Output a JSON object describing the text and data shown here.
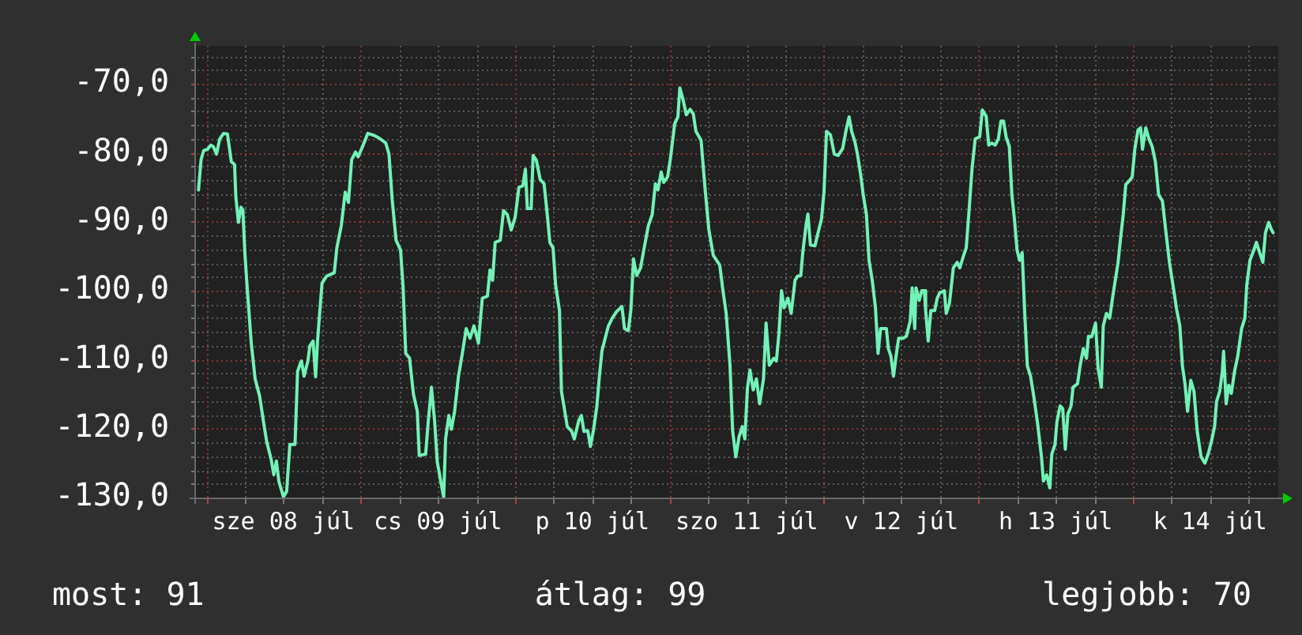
{
  "chart_data": {
    "type": "line",
    "color": "#72f2b6",
    "x": [
      "--07-07T22:48",
      "--07-07T23:12",
      "--07-07T23:36",
      "--07-08T00:12",
      "--07-08T00:42",
      "--07-08T01:06",
      "--07-08T01:36",
      "--07-08T02:06",
      "--07-08T02:42",
      "--07-08T03:18",
      "--07-08T03:54",
      "--07-08T04:24",
      "--07-08T04:36",
      "--07-08T05:00",
      "--07-08T05:24",
      "--07-08T05:42",
      "--07-08T06:00",
      "--07-08T06:24",
      "--07-08T07:00",
      "--07-08T07:36",
      "--07-08T08:18",
      "--07-08T08:54",
      "--07-08T09:24",
      "--07-08T10:06",
      "--07-08T10:30",
      "--07-08T10:54",
      "--07-08T11:18",
      "--07-08T12:00",
      "--07-08T12:30",
      "--07-08T13:00",
      "--07-08T13:48",
      "--07-08T14:12",
      "--07-08T14:36",
      "--07-08T14:48",
      "--07-08T15:12",
      "--07-08T15:48",
      "--07-08T16:06",
      "--07-08T16:36",
      "--07-08T17:00",
      "--07-08T17:18",
      "--07-08T17:36",
      "--07-08T18:00",
      "--07-08T18:42",
      "--07-08T19:54",
      "--07-08T20:18",
      "--07-08T21:00",
      "--07-08T21:36",
      "--07-08T22:06",
      "--07-08T22:36",
      "--07-08T23:12",
      "--07-08T23:36",
      "--07-09T00:18",
      "--07-09T01:06",
      "--07-09T02:06",
      "--07-09T02:54",
      "--07-09T03:54",
      "--07-09T04:24",
      "--07-09T04:54",
      "--07-09T05:30",
      "--07-09T06:12",
      "--07-09T06:36",
      "--07-09T07:00",
      "--07-09T07:36",
      "--07-09T08:12",
      "--07-09T08:48",
      "--07-09T09:06",
      "--07-09T10:06",
      "--07-09T10:30",
      "--07-09T11:00",
      "--07-09T11:30",
      "--07-09T11:54",
      "--07-09T12:24",
      "--07-09T12:54",
      "--07-09T13:12",
      "--07-09T13:42",
      "--07-09T14:06",
      "--07-09T14:36",
      "--07-09T15:12",
      "--07-09T15:48",
      "--07-09T16:24",
      "--07-09T17:00",
      "--07-09T17:36",
      "--07-09T18:18",
      "--07-09T18:54",
      "--07-09T19:42",
      "--07-09T20:06",
      "--07-09T20:30",
      "--07-09T20:54",
      "--07-09T21:42",
      "--07-09T22:12",
      "--07-09T22:48",
      "--07-09T23:24",
      "--07-10T00:00",
      "--07-10T00:36",
      "--07-10T01:12",
      "--07-10T01:36",
      "--07-10T01:54",
      "--07-10T02:30",
      "--07-10T02:48",
      "--07-10T03:18",
      "--07-10T03:54",
      "--07-10T04:30",
      "--07-10T05:00",
      "--07-10T05:24",
      "--07-10T05:54",
      "--07-10T06:18",
      "--07-10T06:54",
      "--07-10T07:12",
      "--07-10T07:36",
      "--07-10T08:06",
      "--07-10T08:48",
      "--07-10T09:12",
      "--07-10T09:54",
      "--07-10T10:18",
      "--07-10T10:42",
      "--07-10T11:18",
      "--07-10T11:42",
      "--07-10T12:12",
      "--07-10T12:42",
      "--07-10T13:06",
      "--07-10T13:30",
      "--07-10T14:00",
      "--07-10T14:30",
      "--07-10T15:06",
      "--07-10T15:48",
      "--07-10T16:36",
      "--07-10T17:00",
      "--07-10T17:36",
      "--07-10T18:00",
      "--07-10T18:24",
      "--07-10T18:54",
      "--07-10T19:30",
      "--07-10T20:00",
      "--07-10T20:42",
      "--07-10T21:18",
      "--07-10T21:48",
      "--07-10T22:12",
      "--07-10T22:42",
      "--07-10T23:06",
      "--07-10T23:42",
      "--07-11T00:06",
      "--07-11T00:48",
      "--07-11T01:18",
      "--07-11T01:36",
      "--07-11T02:06",
      "--07-11T02:36",
      "--07-11T03:12",
      "--07-11T03:42",
      "--07-11T04:06",
      "--07-11T04:54",
      "--07-11T05:30",
      "--07-11T06:06",
      "--07-11T06:48",
      "--07-11T07:48",
      "--07-11T08:18",
      "--07-11T08:48",
      "--07-11T09:24",
      "--07-11T09:48",
      "--07-11T10:18",
      "--07-11T10:48",
      "--07-11T11:18",
      "--07-11T11:42",
      "--07-11T12:06",
      "--07-11T12:30",
      "--07-11T13:00",
      "--07-11T13:30",
      "--07-11T14:00",
      "--07-11T14:36",
      "--07-11T15:00",
      "--07-11T15:30",
      "--07-11T16:12",
      "--07-11T16:36",
      "--07-11T17:00",
      "--07-11T17:24",
      "--07-11T17:48",
      "--07-11T18:24",
      "--07-11T18:54",
      "--07-11T19:30",
      "--07-11T19:54",
      "--07-11T20:24",
      "--07-11T20:42",
      "--07-11T21:12",
      "--07-11T21:30",
      "--07-11T21:54",
      "--07-11T22:36",
      "--07-11T23:00",
      "--07-11T23:36",
      "--07-12T00:00",
      "--07-12T00:24",
      "--07-12T01:00",
      "--07-12T01:36",
      "--07-12T02:12",
      "--07-12T02:54",
      "--07-12T03:24",
      "--07-12T03:54",
      "--07-12T04:18",
      "--07-12T04:48",
      "--07-12T05:12",
      "--07-12T05:42",
      "--07-12T06:06",
      "--07-12T06:36",
      "--07-12T07:00",
      "--07-12T07:30",
      "--07-12T08:00",
      "--07-12T08:24",
      "--07-12T08:48",
      "--07-12T09:42",
      "--07-12T10:00",
      "--07-12T10:24",
      "--07-12T10:48",
      "--07-12T11:12",
      "--07-12T11:36",
      "--07-12T12:18",
      "--07-12T12:48",
      "--07-12T13:24",
      "--07-12T13:42",
      "--07-12T14:06",
      "--07-12T14:18",
      "--07-12T14:48",
      "--07-12T15:12",
      "--07-12T15:36",
      "--07-12T15:48",
      "--07-12T16:12",
      "--07-12T16:36",
      "--07-12T17:12",
      "--07-12T17:36",
      "--07-12T18:00",
      "--07-12T18:42",
      "--07-12T19:00",
      "--07-12T19:30",
      "--07-12T20:06",
      "--07-12T20:42",
      "--07-12T21:06",
      "--07-12T21:42",
      "--07-12T22:06",
      "--07-12T22:30",
      "--07-12T23:00",
      "--07-12T23:30",
      "--07-13T00:12",
      "--07-13T00:36",
      "--07-13T01:12",
      "--07-13T01:36",
      "--07-13T02:06",
      "--07-13T02:36",
      "--07-13T03:06",
      "--07-13T03:30",
      "--07-13T03:54",
      "--07-13T04:18",
      "--07-13T04:48",
      "--07-13T05:12",
      "--07-13T05:36",
      "--07-13T06:00",
      "--07-13T06:24",
      "--07-13T06:48",
      "--07-13T07:12",
      "--07-13T07:36",
      "--07-13T08:06",
      "--07-13T08:36",
      "--07-13T09:12",
      "--07-13T09:48",
      "--07-13T10:06",
      "--07-13T10:36",
      "--07-13T11:06",
      "--07-13T11:24",
      "--07-13T11:54",
      "--07-13T12:12",
      "--07-13T12:42",
      "--07-13T13:06",
      "--07-13T13:30",
      "--07-13T13:54",
      "--07-13T14:24",
      "--07-13T14:42",
      "--07-13T15:24",
      "--07-13T15:48",
      "--07-13T16:18",
      "--07-13T16:48",
      "--07-13T17:06",
      "--07-13T17:36",
      "--07-13T18:12",
      "--07-13T18:36",
      "--07-13T19:06",
      "--07-13T19:24",
      "--07-13T19:54",
      "--07-13T20:24",
      "--07-13T20:54",
      "--07-13T21:12",
      "--07-13T21:42",
      "--07-13T22:06",
      "--07-13T22:30",
      "--07-13T22:54",
      "--07-13T23:30",
      "--07-13T23:54",
      "--07-14T00:18",
      "--07-14T00:48",
      "--07-14T01:12",
      "--07-14T01:30",
      "--07-14T02:00",
      "--07-14T02:30",
      "--07-14T03:00",
      "--07-14T03:30",
      "--07-14T04:00",
      "--07-14T04:36",
      "--07-14T05:06",
      "--07-14T05:42",
      "--07-14T06:18",
      "--07-14T06:48",
      "--07-14T07:18",
      "--07-14T07:42",
      "--07-14T08:06",
      "--07-14T08:30",
      "--07-14T09:00",
      "--07-14T09:30",
      "--07-14T10:00",
      "--07-14T10:36",
      "--07-14T11:12",
      "--07-14T11:42",
      "--07-14T12:12",
      "--07-14T12:42",
      "--07-14T13:00",
      "--07-14T13:30",
      "--07-14T13:54",
      "--07-14T14:06",
      "--07-14T14:30",
      "--07-14T14:54",
      "--07-14T15:18",
      "--07-14T15:48",
      "--07-14T16:18",
      "--07-14T16:54",
      "--07-14T17:24",
      "--07-14T17:42",
      "--07-14T18:12",
      "--07-14T18:48",
      "--07-14T19:12",
      "--07-14T19:42",
      "--07-14T20:12",
      "--07-14T20:36",
      "--07-14T21:06",
      "--07-14T21:30",
      "--07-14T21:48"
    ],
    "values": [
      -85.4,
      -81.0,
      -79.7,
      -79.5,
      -78.9,
      -79.1,
      -80.2,
      -78.0,
      -77.2,
      -77.3,
      -81.3,
      -81.7,
      -86.4,
      -90.1,
      -87.9,
      -88.3,
      -94.5,
      -100.0,
      -107.6,
      -112.8,
      -115.3,
      -119.0,
      -121.9,
      -124.5,
      -126.7,
      -124.7,
      -127.7,
      -129.9,
      -129.1,
      -122.3,
      -122.3,
      -111.7,
      -110.6,
      -110.2,
      -112.4,
      -110.2,
      -108.0,
      -107.3,
      -112.5,
      -107.3,
      -103.6,
      -98.9,
      -97.9,
      -97.4,
      -93.8,
      -90.5,
      -85.7,
      -87.2,
      -81.0,
      -79.9,
      -80.6,
      -79.1,
      -77.2,
      -77.5,
      -77.9,
      -78.6,
      -80.2,
      -86.8,
      -92.7,
      -94.1,
      -99.6,
      -109.1,
      -109.8,
      -115.0,
      -117.5,
      -123.9,
      -123.7,
      -119.0,
      -114.0,
      -119.0,
      -124.8,
      -127.4,
      -130.0,
      -121.5,
      -118.1,
      -120.1,
      -117.5,
      -112.4,
      -109.1,
      -105.5,
      -106.9,
      -105.1,
      -107.6,
      -101.1,
      -100.8,
      -97.0,
      -98.5,
      -93.0,
      -92.7,
      -88.4,
      -89.0,
      -91.2,
      -89.4,
      -85.0,
      -84.8,
      -82.4,
      -88.1,
      -88.1,
      -80.4,
      -81.1,
      -83.9,
      -84.5,
      -89.0,
      -93.0,
      -93.8,
      -99.2,
      -102.9,
      -114.6,
      -116.8,
      -119.7,
      -120.4,
      -121.5,
      -118.8,
      -118.1,
      -120.4,
      -120.3,
      -122.6,
      -120.1,
      -116.8,
      -112.4,
      -108.7,
      -106.9,
      -105.1,
      -104.0,
      -103.0,
      -102.3,
      -105.5,
      -105.8,
      -102.7,
      -95.4,
      -97.8,
      -96.7,
      -94.1,
      -90.6,
      -89.0,
      -84.5,
      -85.4,
      -82.8,
      -84.3,
      -83.5,
      -81.1,
      -75.8,
      -74.8,
      -70.6,
      -72.3,
      -74.5,
      -73.7,
      -74.4,
      -76.9,
      -78.2,
      -85.0,
      -91.1,
      -94.9,
      -96.3,
      -100.0,
      -103.3,
      -110.9,
      -120.3,
      -124.1,
      -121.2,
      -119.7,
      -121.5,
      -114.2,
      -111.5,
      -114.4,
      -112.8,
      -116.4,
      -112.8,
      -104.7,
      -110.8,
      -109.8,
      -110.2,
      -106.2,
      -100.0,
      -102.5,
      -101.1,
      -103.3,
      -98.5,
      -97.9,
      -97.8,
      -94.5,
      -90.6,
      -88.9,
      -93.4,
      -93.5,
      -91.9,
      -89.7,
      -85.7,
      -76.9,
      -77.4,
      -80.2,
      -80.4,
      -79.4,
      -76.9,
      -74.8,
      -76.9,
      -78.4,
      -80.2,
      -83.2,
      -86.1,
      -89.0,
      -95.6,
      -98.5,
      -102.5,
      -109.1,
      -105.5,
      -105.5,
      -108.4,
      -109.5,
      -112.4,
      -109.5,
      -106.9,
      -106.9,
      -106.6,
      -104.4,
      -99.6,
      -105.5,
      -99.6,
      -101.4,
      -100.0,
      -100.0,
      -102.9,
      -107.3,
      -102.9,
      -102.9,
      -101.1,
      -100.3,
      -100.0,
      -103.3,
      -101.8,
      -96.7,
      -95.9,
      -96.7,
      -94.9,
      -93.8,
      -89.0,
      -82.4,
      -78.0,
      -77.7,
      -73.8,
      -74.7,
      -78.9,
      -78.6,
      -78.9,
      -78.0,
      -75.4,
      -75.4,
      -77.7,
      -79.1,
      -86.1,
      -89.7,
      -94.1,
      -95.6,
      -94.5,
      -103.3,
      -110.9,
      -112.4,
      -115.3,
      -119.3,
      -124.1,
      -127.6,
      -126.7,
      -128.6,
      -123.7,
      -122.3,
      -119.0,
      -116.7,
      -117.1,
      -123.0,
      -117.9,
      -116.7,
      -114.0,
      -113.5,
      -110.9,
      -108.4,
      -109.8,
      -106.6,
      -106.7,
      -104.7,
      -111.3,
      -114.0,
      -105.1,
      -103.3,
      -104.0,
      -100.7,
      -98.9,
      -95.9,
      -92.3,
      -89.0,
      -84.6,
      -84.0,
      -83.5,
      -79.5,
      -76.7,
      -76.4,
      -79.5,
      -76.4,
      -78.0,
      -79.1,
      -81.3,
      -86.1,
      -87.0,
      -91.2,
      -96.0,
      -99.6,
      -102.7,
      -105.1,
      -110.9,
      -113.5,
      -117.5,
      -113.0,
      -114.6,
      -120.4,
      -124.1,
      -125.0,
      -123.7,
      -121.9,
      -119.7,
      -116.1,
      -114.6,
      -111.7,
      -108.8,
      -116.4,
      -113.7,
      -114.9,
      -111.7,
      -109.5,
      -105.5,
      -104.0,
      -99.2,
      -95.6,
      -94.1,
      -93.0,
      -94.5,
      -95.9,
      -91.6,
      -90.1,
      -91.1,
      -91.6
    ],
    "xlim": [
      "--07-07T22:24",
      "--07-14T22:36"
    ],
    "ylim": [
      -130,
      -64.5
    ],
    "xticks": [
      {
        "value": "--07-08T00:00",
        "label": null
      },
      {
        "value": "--07-08T06:00",
        "label": null
      },
      {
        "value": "--07-08T12:00",
        "label": "sze 08 júl"
      },
      {
        "value": "--07-08T18:00",
        "label": null
      },
      {
        "value": "--07-09T00:00",
        "label": null
      },
      {
        "value": "--07-09T06:00",
        "label": null
      },
      {
        "value": "--07-09T12:00",
        "label": "cs 09 júl"
      },
      {
        "value": "--07-09T18:00",
        "label": null
      },
      {
        "value": "--07-10T00:00",
        "label": null
      },
      {
        "value": "--07-10T06:00",
        "label": null
      },
      {
        "value": "--07-10T12:00",
        "label": "p 10 júl"
      },
      {
        "value": "--07-10T18:00",
        "label": null
      },
      {
        "value": "--07-11T00:00",
        "label": null
      },
      {
        "value": "--07-11T06:00",
        "label": null
      },
      {
        "value": "--07-11T12:00",
        "label": "szo 11 júl"
      },
      {
        "value": "--07-11T18:00",
        "label": null
      },
      {
        "value": "--07-12T00:00",
        "label": null
      },
      {
        "value": "--07-12T06:00",
        "label": null
      },
      {
        "value": "--07-12T12:00",
        "label": "v 12 júl"
      },
      {
        "value": "--07-12T18:00",
        "label": null
      },
      {
        "value": "--07-13T00:00",
        "label": null
      },
      {
        "value": "--07-13T06:00",
        "label": null
      },
      {
        "value": "--07-13T12:00",
        "label": "h 13 júl"
      },
      {
        "value": "--07-13T18:00",
        "label": null
      },
      {
        "value": "--07-14T00:00",
        "label": null
      },
      {
        "value": "--07-14T06:00",
        "label": null
      },
      {
        "value": "--07-14T12:00",
        "label": "k 14 júl"
      },
      {
        "value": "--07-14T18:00",
        "label": null
      }
    ],
    "yticks": [
      {
        "value": -130,
        "label": "-130,0"
      },
      {
        "value": -128,
        "label": null
      },
      {
        "value": -126,
        "label": null
      },
      {
        "value": -124,
        "label": null
      },
      {
        "value": -122,
        "label": null
      },
      {
        "value": -120,
        "label": "-120,0"
      },
      {
        "value": -118,
        "label": null
      },
      {
        "value": -116,
        "label": null
      },
      {
        "value": -114,
        "label": null
      },
      {
        "value": -112,
        "label": null
      },
      {
        "value": -110,
        "label": "-110,0"
      },
      {
        "value": -108,
        "label": null
      },
      {
        "value": -106,
        "label": null
      },
      {
        "value": -104,
        "label": null
      },
      {
        "value": -102,
        "label": null
      },
      {
        "value": -100,
        "label": "-100,0"
      },
      {
        "value": -98,
        "label": null
      },
      {
        "value": -96,
        "label": null
      },
      {
        "value": -94,
        "label": null
      },
      {
        "value": -92,
        "label": null
      },
      {
        "value": -90,
        "label": "-90,0"
      },
      {
        "value": -88,
        "label": null
      },
      {
        "value": -86,
        "label": null
      },
      {
        "value": -84,
        "label": null
      },
      {
        "value": -82,
        "label": null
      },
      {
        "value": -80,
        "label": "-80,0"
      },
      {
        "value": -78,
        "label": null
      },
      {
        "value": -76,
        "label": null
      },
      {
        "value": -74,
        "label": null
      },
      {
        "value": -72,
        "label": null
      },
      {
        "value": -70,
        "label": "-70,0"
      },
      {
        "value": -68,
        "label": null
      },
      {
        "value": -66,
        "label": null
      }
    ],
    "grid": true,
    "annotations": [
      "most: 91",
      "átlag: 99",
      "legjobb: 70"
    ]
  }
}
